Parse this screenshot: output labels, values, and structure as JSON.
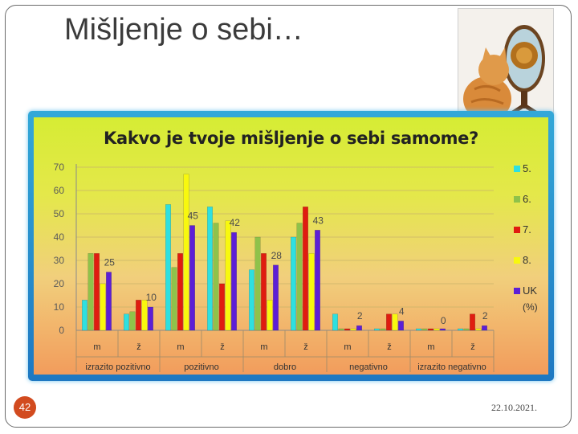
{
  "slide": {
    "title": "Mišljenje o sebi…",
    "number": "42",
    "date": "22.10.2021."
  },
  "colors": {
    "chart_border": "#2b8fd0",
    "series": [
      "#2ee0e0",
      "#8fc24a",
      "#e01c10",
      "#f8f80e",
      "#5c1fd6"
    ]
  },
  "chart_data": {
    "type": "bar",
    "title": "Kakvo je tvoje mišljenje o sebi samome?",
    "ylim": [
      0,
      70
    ],
    "yticks": [
      0,
      10,
      20,
      30,
      40,
      50,
      60,
      70
    ],
    "grid": true,
    "legend_position": "right",
    "legend_note": "(%)",
    "groups": [
      "izrazito pozitivno",
      "pozitivno",
      "dobro",
      "negativno",
      "izrazito negativno"
    ],
    "categories": [
      "m",
      "ž",
      "m",
      "ž",
      "m",
      "ž",
      "m",
      "ž",
      "m",
      "ž"
    ],
    "series": [
      {
        "name": "5.",
        "values": [
          13,
          7,
          54,
          53,
          26,
          40,
          7,
          0,
          0,
          0
        ]
      },
      {
        "name": "6.",
        "values": [
          33,
          8,
          27,
          46,
          40,
          46,
          0,
          0,
          0,
          0
        ]
      },
      {
        "name": "7.",
        "values": [
          33,
          13,
          33,
          20,
          33,
          53,
          0,
          7,
          0,
          7
        ]
      },
      {
        "name": "8.",
        "values": [
          20,
          13,
          67,
          47,
          13,
          33,
          0,
          7,
          0,
          0
        ]
      },
      {
        "name": "UK",
        "values": [
          25,
          10,
          45,
          42,
          28,
          43,
          2,
          4,
          0,
          2
        ]
      }
    ],
    "value_labels": [
      {
        "category_index": 0,
        "text": "25"
      },
      {
        "category_index": 1,
        "text": "10"
      },
      {
        "category_index": 2,
        "text": "45"
      },
      {
        "category_index": 3,
        "text": "42"
      },
      {
        "category_index": 4,
        "text": "28"
      },
      {
        "category_index": 5,
        "text": "43"
      },
      {
        "category_index": 6,
        "text": "2"
      },
      {
        "category_index": 7,
        "text": "4"
      },
      {
        "category_index": 8,
        "text": "0"
      },
      {
        "category_index": 9,
        "text": "2"
      }
    ]
  }
}
